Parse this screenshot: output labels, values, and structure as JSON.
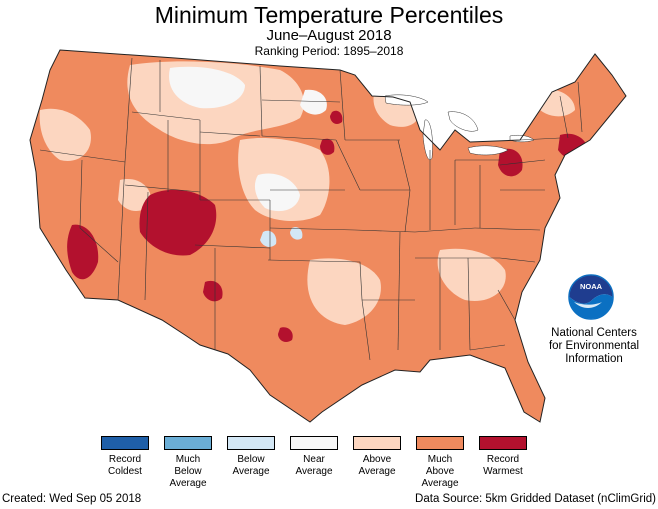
{
  "title": "Minimum Temperature Percentiles",
  "subtitle": "June–August 2018",
  "ranking_period": "Ranking Period: 1895–2018",
  "credit": {
    "org": "National Centers for Environmental Information",
    "logo_text": "NOAA"
  },
  "legend": [
    {
      "label": "Record\nColdest",
      "color": "#1f5fa8"
    },
    {
      "label": "Much\nBelow\nAverage",
      "color": "#6baed6"
    },
    {
      "label": "Below\nAverage",
      "color": "#d3e7f5"
    },
    {
      "label": "Near\nAverage",
      "color": "#f7f7f7"
    },
    {
      "label": "Above\nAverage",
      "color": "#fcd6c0"
    },
    {
      "label": "Much\nAbove\nAverage",
      "color": "#ef8a5e"
    },
    {
      "label": "Record\nWarmest",
      "color": "#b3112e"
    }
  ],
  "footer": {
    "created": "Created: Wed Sep 05 2018",
    "source": "Data Source: 5km Gridded Dataset (nClimGrid)"
  },
  "colors": {
    "record_warmest": "#b3112e",
    "much_above": "#ef8a5e",
    "above": "#fcd6c0",
    "near": "#f7f7f7",
    "below": "#d3e7f5",
    "much_below": "#6baed6",
    "record_coldest": "#1f5fa8",
    "noaa_blue": "#0b70c2"
  }
}
